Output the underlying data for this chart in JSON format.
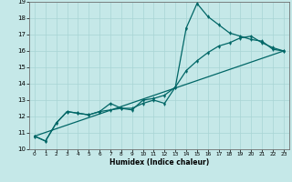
{
  "title": "",
  "xlabel": "Humidex (Indice chaleur)",
  "ylabel": "",
  "bg_color": "#c5e8e8",
  "grid_color": "#a8d4d4",
  "line_color": "#006666",
  "xlim": [
    -0.5,
    23.5
  ],
  "ylim": [
    10,
    19
  ],
  "xticks": [
    0,
    1,
    2,
    3,
    4,
    5,
    6,
    7,
    8,
    9,
    10,
    11,
    12,
    13,
    14,
    15,
    16,
    17,
    18,
    19,
    20,
    21,
    22,
    23
  ],
  "yticks": [
    10,
    11,
    12,
    13,
    14,
    15,
    16,
    17,
    18,
    19
  ],
  "line1_x": [
    0,
    1,
    2,
    3,
    4,
    5,
    6,
    7,
    8,
    9,
    10,
    11,
    12,
    13,
    14,
    15,
    16,
    17,
    18,
    19,
    20,
    21,
    22,
    23
  ],
  "line1_y": [
    10.8,
    10.5,
    11.6,
    12.3,
    12.2,
    12.1,
    12.3,
    12.8,
    12.5,
    12.5,
    12.8,
    13.0,
    12.8,
    13.8,
    17.4,
    18.9,
    18.1,
    17.6,
    17.1,
    16.9,
    16.7,
    16.6,
    16.1,
    16.0
  ],
  "line2_x": [
    0,
    1,
    2,
    3,
    4,
    5,
    6,
    7,
    8,
    9,
    10,
    11,
    12,
    13,
    14,
    15,
    16,
    17,
    18,
    19,
    20,
    21,
    22,
    23
  ],
  "line2_y": [
    10.8,
    10.5,
    11.6,
    12.3,
    12.2,
    12.1,
    12.3,
    12.4,
    12.5,
    12.4,
    13.0,
    13.1,
    13.3,
    13.8,
    14.8,
    15.4,
    15.9,
    16.3,
    16.5,
    16.8,
    16.9,
    16.5,
    16.2,
    16.0
  ],
  "line3_x": [
    0,
    23
  ],
  "line3_y": [
    10.8,
    16.0
  ]
}
